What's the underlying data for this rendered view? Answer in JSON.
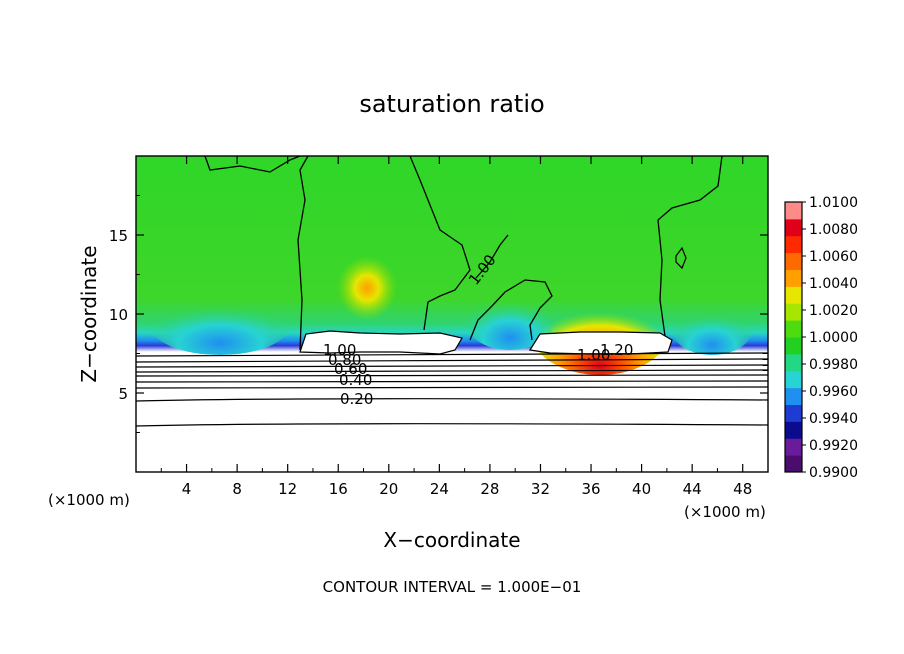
{
  "chart_data": {
    "type": "heatmap",
    "title": "saturation ratio",
    "xlabel": "X−coordinate",
    "ylabel": "Z−coordinate",
    "x_unit_left": "(×1000 m)",
    "x_unit_right": "(×1000 m)",
    "xlim": [
      0,
      50
    ],
    "ylim": [
      0,
      20
    ],
    "x_ticks": [
      4,
      8,
      12,
      16,
      20,
      24,
      28,
      32,
      36,
      40,
      44,
      48
    ],
    "y_ticks": [
      5,
      10,
      15
    ],
    "footer": "CONTOUR INTERVAL = 1.000E−01",
    "colorbar": {
      "min": 0.99,
      "max": 1.01,
      "ticks": [
        "1.0100",
        "1.0080",
        "1.0060",
        "1.0040",
        "1.0020",
        "1.0000",
        "0.9980",
        "0.9960",
        "0.9940",
        "0.9920",
        "0.9900"
      ],
      "colors": [
        "#4a0d6e",
        "#6a1b9a",
        "#0b0b8f",
        "#1e3cd2",
        "#1f8ff0",
        "#27d3d3",
        "#22d884",
        "#22d022",
        "#4cdc10",
        "#a6e600",
        "#e6e600",
        "#ffa000",
        "#ff6a00",
        "#ff2a00",
        "#e0001a",
        "#ff8a8a"
      ]
    },
    "contour_labels": [
      "1.00",
      "1.00",
      "1.20",
      "1.00",
      "0.80",
      "0.60",
      "0.40",
      "0.20"
    ]
  }
}
